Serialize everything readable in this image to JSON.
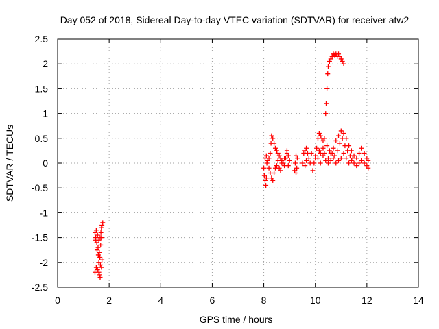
{
  "chart_data": {
    "type": "scatter",
    "title": "Day 052 of 2018, Sidereal Day-to-day VTEC variation (SDTVAR) for receiver atw2",
    "xlabel": "GPS time / hours",
    "ylabel": "SDTVAR / TECUs",
    "xlim": [
      0,
      14
    ],
    "ylim": [
      -2.5,
      2.5
    ],
    "xticks": [
      0,
      2,
      4,
      6,
      8,
      10,
      12,
      14
    ],
    "yticks": [
      -2.5,
      -2,
      -1.5,
      -1,
      -0.5,
      0,
      0.5,
      1,
      1.5,
      2,
      2.5
    ],
    "grid": true,
    "marker": "plus",
    "color": "#ff0000",
    "points": [
      [
        1.45,
        -1.4
      ],
      [
        1.48,
        -1.5
      ],
      [
        1.5,
        -1.35
      ],
      [
        1.52,
        -1.6
      ],
      [
        1.55,
        -1.45
      ],
      [
        1.57,
        -1.7
      ],
      [
        1.6,
        -1.55
      ],
      [
        1.62,
        -1.8
      ],
      [
        1.65,
        -1.5
      ],
      [
        1.67,
        -1.65
      ],
      [
        1.7,
        -1.3
      ],
      [
        1.72,
        -1.25
      ],
      [
        1.75,
        -1.2
      ],
      [
        1.68,
        -1.4
      ],
      [
        1.64,
        -1.9
      ],
      [
        1.5,
        -2.1
      ],
      [
        1.45,
        -2.2
      ],
      [
        1.55,
        -2.15
      ],
      [
        1.6,
        -2.0
      ],
      [
        1.62,
        -2.25
      ],
      [
        1.65,
        -2.3
      ],
      [
        1.7,
        -2.1
      ],
      [
        1.72,
        -1.95
      ],
      [
        1.58,
        -1.85
      ],
      [
        1.66,
        -2.05
      ],
      [
        1.53,
        -1.75
      ],
      [
        1.47,
        -1.55
      ],
      [
        1.7,
        -1.5
      ],
      [
        1.6,
        -2.2
      ],
      [
        8.0,
        -0.1
      ],
      [
        8.02,
        -0.25
      ],
      [
        8.05,
        -0.35
      ],
      [
        8.08,
        -0.45
      ],
      [
        8.1,
        -0.3
      ],
      [
        8.12,
        0.0
      ],
      [
        8.15,
        0.05
      ],
      [
        8.2,
        0.1
      ],
      [
        8.25,
        0.2
      ],
      [
        8.28,
        0.4
      ],
      [
        8.3,
        0.55
      ],
      [
        8.35,
        0.5
      ],
      [
        8.4,
        0.4
      ],
      [
        8.45,
        0.3
      ],
      [
        8.5,
        0.25
      ],
      [
        8.55,
        0.2
      ],
      [
        8.6,
        0.15
      ],
      [
        8.65,
        0.1
      ],
      [
        8.7,
        0.05
      ],
      [
        8.75,
        0.0
      ],
      [
        8.8,
        -0.05
      ],
      [
        8.85,
        0.1
      ],
      [
        8.9,
        0.2
      ],
      [
        8.95,
        0.15
      ],
      [
        9.0,
        0.05
      ],
      [
        8.05,
        0.1
      ],
      [
        8.1,
        0.15
      ],
      [
        8.2,
        -0.1
      ],
      [
        8.25,
        -0.2
      ],
      [
        8.3,
        -0.3
      ],
      [
        8.35,
        -0.35
      ],
      [
        8.4,
        -0.2
      ],
      [
        8.45,
        -0.1
      ],
      [
        8.5,
        -0.05
      ],
      [
        8.55,
        0.05
      ],
      [
        8.6,
        -0.1
      ],
      [
        8.65,
        -0.15
      ],
      [
        8.7,
        0.0
      ],
      [
        8.8,
        0.1
      ],
      [
        8.9,
        0.25
      ],
      [
        8.95,
        -0.05
      ],
      [
        9.2,
        -0.15
      ],
      [
        9.22,
        0.0
      ],
      [
        9.25,
        0.15
      ],
      [
        9.28,
        -0.1
      ],
      [
        9.3,
        0.1
      ],
      [
        9.25,
        -0.2
      ],
      [
        9.5,
        0.0
      ],
      [
        9.55,
        0.2
      ],
      [
        9.6,
        0.25
      ],
      [
        9.65,
        0.3
      ],
      [
        9.7,
        0.2
      ],
      [
        9.75,
        0.1
      ],
      [
        9.8,
        0.0
      ],
      [
        9.85,
        0.2
      ],
      [
        9.6,
        -0.05
      ],
      [
        9.65,
        0.05
      ],
      [
        9.9,
        -0.15
      ],
      [
        9.95,
        0.0
      ],
      [
        10.0,
        0.1
      ],
      [
        10.05,
        0.3
      ],
      [
        10.1,
        0.5
      ],
      [
        10.15,
        0.6
      ],
      [
        10.2,
        0.55
      ],
      [
        10.25,
        0.5
      ],
      [
        10.3,
        0.45
      ],
      [
        10.35,
        0.5
      ],
      [
        10.4,
        1.0
      ],
      [
        10.42,
        1.2
      ],
      [
        10.45,
        1.5
      ],
      [
        10.48,
        1.8
      ],
      [
        10.5,
        1.95
      ],
      [
        10.55,
        2.05
      ],
      [
        10.6,
        2.1
      ],
      [
        10.65,
        2.15
      ],
      [
        10.7,
        2.2
      ],
      [
        10.75,
        2.18
      ],
      [
        10.8,
        2.2
      ],
      [
        10.85,
        2.15
      ],
      [
        10.9,
        2.2
      ],
      [
        10.95,
        2.15
      ],
      [
        11.0,
        2.1
      ],
      [
        11.05,
        2.05
      ],
      [
        11.1,
        2.0
      ],
      [
        10.0,
        0.15
      ],
      [
        10.1,
        0.1
      ],
      [
        10.2,
        0.2
      ],
      [
        10.3,
        0.15
      ],
      [
        10.4,
        0.05
      ],
      [
        10.5,
        0.1
      ],
      [
        10.6,
        0.2
      ],
      [
        10.7,
        0.3
      ],
      [
        10.8,
        0.45
      ],
      [
        10.9,
        0.55
      ],
      [
        11.0,
        0.65
      ],
      [
        11.1,
        0.6
      ],
      [
        11.2,
        0.5
      ],
      [
        11.3,
        0.35
      ],
      [
        11.4,
        0.25
      ],
      [
        11.5,
        0.15
      ],
      [
        11.6,
        0.1
      ],
      [
        11.7,
        0.2
      ],
      [
        11.8,
        0.3
      ],
      [
        11.9,
        0.2
      ],
      [
        12.0,
        0.1
      ],
      [
        12.05,
        0.05
      ],
      [
        10.5,
        0.0
      ],
      [
        10.6,
        0.05
      ],
      [
        10.7,
        0.1
      ],
      [
        10.8,
        0.0
      ],
      [
        10.9,
        0.05
      ],
      [
        11.0,
        0.1
      ],
      [
        11.1,
        0.2
      ],
      [
        11.2,
        0.1
      ],
      [
        11.3,
        0.0
      ],
      [
        11.4,
        0.05
      ],
      [
        11.5,
        0.0
      ],
      [
        11.6,
        -0.05
      ],
      [
        11.7,
        0.0
      ],
      [
        11.8,
        0.05
      ],
      [
        11.9,
        0.0
      ],
      [
        12.0,
        -0.05
      ],
      [
        12.05,
        -0.1
      ],
      [
        10.3,
        0.3
      ],
      [
        10.35,
        0.2
      ],
      [
        10.2,
        0.0
      ],
      [
        10.15,
        0.25
      ],
      [
        10.45,
        0.35
      ],
      [
        10.55,
        0.25
      ],
      [
        10.65,
        0.2
      ],
      [
        10.75,
        0.15
      ],
      [
        10.85,
        0.25
      ],
      [
        10.95,
        0.4
      ],
      [
        11.05,
        0.5
      ],
      [
        11.15,
        0.35
      ],
      [
        11.25,
        0.25
      ],
      [
        11.35,
        0.15
      ],
      [
        11.45,
        0.1
      ]
    ]
  }
}
